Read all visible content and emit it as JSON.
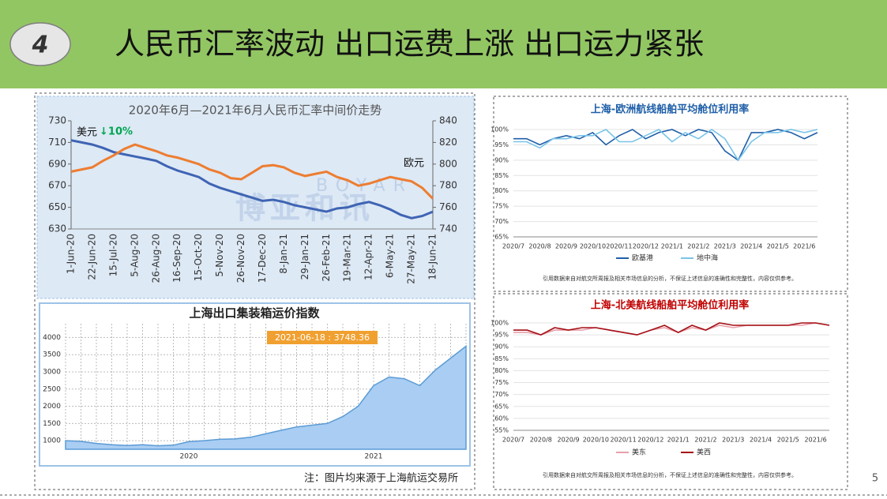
{
  "header": {
    "number": "4",
    "title": "人民币汇率波动 出口运费上涨 出口运力紧张"
  },
  "footer": {
    "note": "注：图片均来源于上海航运交易所",
    "page": "5"
  },
  "chart_data": [
    {
      "type": "line",
      "title": "2020年6月—2021年6月人民币汇率中间价走势",
      "categories": [
        "1-Jun-20",
        null,
        "22-Jun-20",
        null,
        "15-Jul-20",
        null,
        "5-Aug-20",
        null,
        "26-Aug-20",
        null,
        "16-Sep-20",
        null,
        "15-Oct-20",
        null,
        "5-Nov-20",
        null,
        "26-Nov-20",
        null,
        "17-Dec-20",
        null,
        "8-Jan-21",
        null,
        "29-Jan-21",
        null,
        "26-Feb-21",
        null,
        "19-Mar-21",
        null,
        "12-Apr-21",
        null,
        "6-May-21",
        null,
        "27-May-21",
        null,
        "18-Jun-21"
      ],
      "series": [
        {
          "name": "美元",
          "color": "#3f64b4",
          "values": [
            712,
            710,
            708,
            705,
            701,
            699,
            697,
            695,
            693,
            688,
            684,
            681,
            678,
            672,
            668,
            665,
            662,
            659,
            656,
            657,
            655,
            652,
            650,
            648,
            646,
            649,
            650,
            653,
            655,
            652,
            648,
            643,
            640,
            642,
            646
          ]
        },
        {
          "name": "欧元",
          "color": "#ed7d31",
          "axis": "y2",
          "values": [
            793,
            795,
            797,
            803,
            808,
            814,
            818,
            815,
            812,
            808,
            806,
            803,
            800,
            795,
            792,
            787,
            786,
            792,
            798,
            799,
            797,
            792,
            789,
            791,
            793,
            788,
            785,
            780,
            782,
            785,
            788,
            786,
            784,
            778,
            768
          ]
        }
      ],
      "annotation": "↓10%",
      "watermark": [
        "BOYAR",
        "博亚和讯"
      ],
      "ylim": [
        630,
        730
      ],
      "yticks": [
        630,
        650,
        670,
        690,
        710,
        730
      ],
      "y2lim": [
        740,
        840
      ],
      "y2ticks": [
        740,
        760,
        780,
        800,
        820,
        840
      ],
      "grid": false
    },
    {
      "type": "area",
      "title": "上海出口集装箱运价指数",
      "categories": [
        null,
        null,
        null,
        null,
        null,
        null,
        null,
        null,
        "2020",
        null,
        null,
        null,
        null,
        null,
        null,
        null,
        null,
        null,
        null,
        null,
        "2021",
        null,
        null,
        null,
        null,
        null,
        null
      ],
      "values": [
        1000,
        980,
        920,
        880,
        860,
        880,
        850,
        870,
        970,
        1000,
        1040,
        1050,
        1100,
        1200,
        1300,
        1400,
        1450,
        1500,
        1700,
        2000,
        2600,
        2850,
        2800,
        2600,
        3050,
        3400,
        3748.36
      ],
      "color": "#a9cdf3",
      "annotation": "2021-06-18 : 3748.36",
      "ylim": [
        750,
        4400
      ],
      "yticks": [
        1000,
        1500,
        2000,
        2500,
        3000,
        3500,
        4000
      ],
      "grid": true
    },
    {
      "type": "line",
      "title": "上海-欧洲航线船舶平均舱位利用率",
      "categories": [
        "2020/7",
        null,
        "2020/8",
        null,
        "2020/9",
        null,
        "2020/10",
        null,
        "2020/11",
        null,
        "2020/12",
        null,
        "2021/1",
        null,
        "2021/2",
        null,
        "2021/3",
        null,
        "2021/4",
        null,
        "2021/5",
        null,
        "2021/6",
        null
      ],
      "series": [
        {
          "name": "欧基港",
          "color": "#1f5fa8",
          "values": [
            97,
            97,
            95,
            97,
            98,
            97,
            99,
            95,
            98,
            100,
            97,
            99,
            100,
            98,
            100,
            99,
            93,
            90,
            99,
            99,
            100,
            99,
            97,
            99
          ]
        },
        {
          "name": "地中海",
          "color": "#79c4e8",
          "values": [
            96,
            96,
            94,
            97,
            97,
            98,
            98,
            100,
            96,
            96,
            98,
            100,
            96,
            99,
            97,
            100,
            97,
            90,
            96,
            99,
            99,
            100,
            99,
            100
          ]
        }
      ],
      "note": "引用数据来自对航交所周报及相关市场信息的分析，不保证上述信息的准确性和完整性，内容仅供参考。",
      "ylim": [
        65,
        100
      ],
      "yticks": [
        {
          "value": 65,
          "label": "65%"
        },
        {
          "value": 70,
          "label": "70%"
        },
        {
          "value": 75,
          "label": "75%"
        },
        {
          "value": 80,
          "label": "80%"
        },
        {
          "value": 85,
          "label": "85%"
        },
        {
          "value": 90,
          "label": "90%"
        },
        {
          "value": 95,
          "label": "95%"
        },
        {
          "value": 100,
          "label": "100%"
        }
      ],
      "grid": true
    },
    {
      "type": "line",
      "title": "上海-北美航线船舶平均舱位利用率",
      "categories": [
        "2020/7",
        null,
        "2020/8",
        null,
        "2020/9",
        null,
        "2020/10",
        null,
        "2020/11",
        null,
        "2020/12",
        null,
        "2021/1",
        null,
        "2021/2",
        null,
        "2021/3",
        null,
        "2021/4",
        null,
        "2021/5",
        null,
        "2021/6",
        null
      ],
      "series": [
        {
          "name": "美东",
          "color": "#e8a0aa",
          "values": [
            96,
            96,
            95,
            97,
            97,
            97,
            98,
            97,
            96,
            95,
            97,
            98,
            96,
            98,
            97,
            99,
            98,
            99,
            99,
            99,
            99,
            99,
            100,
            99
          ]
        },
        {
          "name": "美西",
          "color": "#a50f15",
          "values": [
            97,
            97,
            95,
            98,
            97,
            98,
            98,
            97,
            96,
            95,
            97,
            99,
            96,
            99,
            97,
            100,
            99,
            99,
            99,
            99,
            99,
            100,
            100,
            99
          ]
        }
      ],
      "note": "引用数据来自对航交所周报及相关市场信息的分析，不保证上述信息的准确性和完整性，内容仅供参考。",
      "ylim": [
        55,
        100
      ],
      "yticks": [
        {
          "value": 55,
          "label": "55%"
        },
        {
          "value": 60,
          "label": "60%"
        },
        {
          "value": 65,
          "label": "65%"
        },
        {
          "value": 70,
          "label": "70%"
        },
        {
          "value": 75,
          "label": "75%"
        },
        {
          "value": 80,
          "label": "80%"
        },
        {
          "value": 85,
          "label": "85%"
        },
        {
          "value": 90,
          "label": "90%"
        },
        {
          "value": 95,
          "label": "95%"
        },
        {
          "value": 100,
          "label": "100%"
        }
      ],
      "grid": true
    }
  ]
}
